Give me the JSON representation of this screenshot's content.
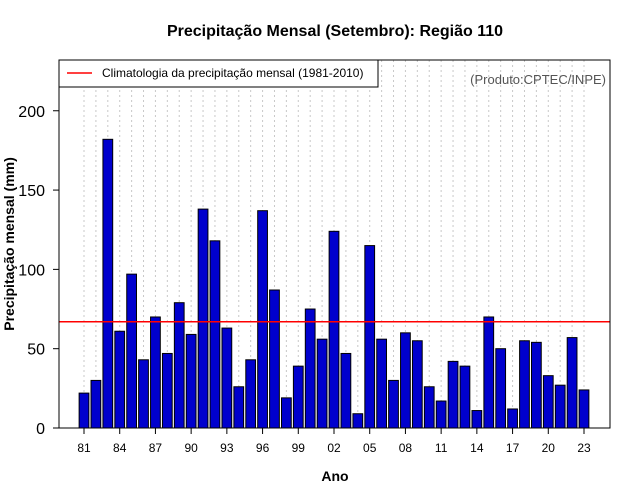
{
  "chart_data": {
    "type": "bar",
    "title": "Precipitação Mensal (Setembro): Região 110",
    "xlabel": "Ano",
    "ylabel": "Precipitação mensal (mm)",
    "credit": "(Produto:CPTEC/INPE)",
    "ylim": [
      0,
      232
    ],
    "yticks": [
      0,
      50,
      100,
      150,
      200
    ],
    "grid": "vertical-dotted",
    "legend_position": "top-left",
    "categories": [
      "81",
      "82",
      "83",
      "84",
      "85",
      "86",
      "87",
      "88",
      "89",
      "90",
      "91",
      "92",
      "93",
      "94",
      "95",
      "96",
      "97",
      "98",
      "99",
      "00",
      "01",
      "02",
      "03",
      "04",
      "05",
      "06",
      "07",
      "08",
      "09",
      "10",
      "11",
      "12",
      "13",
      "14",
      "15",
      "16",
      "17",
      "18",
      "19",
      "20",
      "21",
      "22",
      "23"
    ],
    "xtick_labels": [
      {
        "index": 0,
        "label": "81"
      },
      {
        "index": 3,
        "label": "84"
      },
      {
        "index": 6,
        "label": "87"
      },
      {
        "index": 9,
        "label": "90"
      },
      {
        "index": 12,
        "label": "93"
      },
      {
        "index": 15,
        "label": "96"
      },
      {
        "index": 18,
        "label": "99"
      },
      {
        "index": 21,
        "label": "02"
      },
      {
        "index": 24,
        "label": "05"
      },
      {
        "index": 27,
        "label": "08"
      },
      {
        "index": 30,
        "label": "11"
      },
      {
        "index": 33,
        "label": "14"
      },
      {
        "index": 36,
        "label": "17"
      },
      {
        "index": 39,
        "label": "20"
      },
      {
        "index": 42,
        "label": "23"
      }
    ],
    "series": [
      {
        "name": "Precipitação mensal",
        "color": "#0000cd",
        "values": [
          22,
          30,
          182,
          61,
          97,
          43,
          70,
          47,
          79,
          59,
          138,
          118,
          63,
          26,
          43,
          137,
          87,
          19,
          39,
          75,
          56,
          124,
          47,
          9,
          115,
          56,
          30,
          60,
          55,
          26,
          17,
          42,
          39,
          11,
          70,
          50,
          12,
          55,
          54,
          33,
          27,
          57,
          24
        ]
      }
    ],
    "reference_line": {
      "label": "Climatologia da precipitação mensal (1981-2010)",
      "value": 67,
      "color": "#ff0000"
    }
  }
}
